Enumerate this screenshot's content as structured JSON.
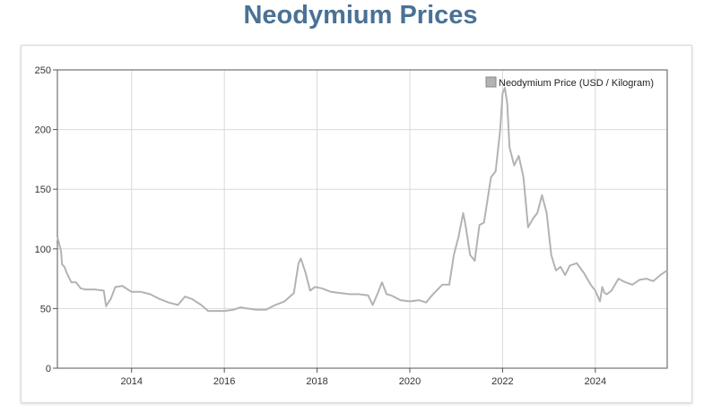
{
  "page": {
    "title": "Neodymium Prices"
  },
  "chart_data": {
    "type": "line",
    "title": "Neodymium Prices",
    "xlabel": "",
    "ylabel": "",
    "xlim": [
      2012.4,
      2025.55
    ],
    "ylim": [
      0,
      250
    ],
    "x_ticks": [
      2014,
      2016,
      2018,
      2020,
      2022,
      2024
    ],
    "y_ticks": [
      0,
      50,
      100,
      150,
      200,
      250
    ],
    "grid": true,
    "legend_position": "top-right",
    "series_color": "#b3b3b3",
    "series": [
      {
        "name": "Neodymium Price (USD / Kilogram)",
        "x": [
          2012.4,
          2012.48,
          2012.5,
          2012.55,
          2012.6,
          2012.7,
          2012.8,
          2012.9,
          2013.0,
          2013.2,
          2013.4,
          2013.45,
          2013.55,
          2013.65,
          2013.8,
          2014.0,
          2014.2,
          2014.4,
          2014.6,
          2014.8,
          2015.0,
          2015.15,
          2015.3,
          2015.5,
          2015.65,
          2015.8,
          2016.0,
          2016.2,
          2016.35,
          2016.5,
          2016.7,
          2016.9,
          2017.1,
          2017.3,
          2017.5,
          2017.6,
          2017.65,
          2017.75,
          2017.85,
          2017.95,
          2018.1,
          2018.3,
          2018.5,
          2018.7,
          2018.9,
          2019.1,
          2019.2,
          2019.3,
          2019.4,
          2019.5,
          2019.6,
          2019.8,
          2020.0,
          2020.2,
          2020.35,
          2020.5,
          2020.7,
          2020.85,
          2020.95,
          2021.05,
          2021.15,
          2021.2,
          2021.3,
          2021.4,
          2021.5,
          2021.6,
          2021.75,
          2021.85,
          2021.95,
          2022.0,
          2022.05,
          2022.1,
          2022.15,
          2022.25,
          2022.35,
          2022.45,
          2022.55,
          2022.65,
          2022.75,
          2022.85,
          2022.95,
          2023.05,
          2023.15,
          2023.25,
          2023.35,
          2023.45,
          2023.6,
          2023.75,
          2023.9,
          2024.0,
          2024.1,
          2024.15,
          2024.2,
          2024.25,
          2024.35,
          2024.5,
          2024.65,
          2024.8,
          2024.95,
          2025.1,
          2025.25,
          2025.4,
          2025.55
        ],
        "values": [
          110,
          98,
          87,
          85,
          80,
          72,
          72,
          67,
          66,
          66,
          65,
          52,
          58,
          68,
          69,
          64,
          64,
          62,
          58,
          55,
          53,
          60,
          58,
          53,
          48,
          48,
          48,
          49,
          51,
          50,
          49,
          49,
          53,
          56,
          63,
          88,
          92,
          80,
          65,
          68,
          67,
          64,
          63,
          62,
          62,
          61,
          53,
          62,
          72,
          62,
          61,
          57,
          56,
          57,
          55,
          62,
          70,
          70,
          95,
          110,
          130,
          120,
          95,
          90,
          120,
          122,
          160,
          165,
          200,
          230,
          235,
          222,
          185,
          170,
          178,
          160,
          118,
          125,
          130,
          145,
          130,
          95,
          82,
          85,
          78,
          86,
          88,
          80,
          70,
          65,
          56,
          68,
          63,
          62,
          65,
          75,
          72,
          70,
          74,
          75,
          73,
          78,
          82
        ]
      }
    ]
  }
}
